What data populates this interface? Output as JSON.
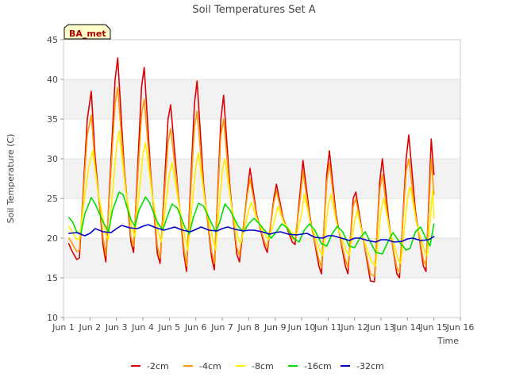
{
  "chart_data": {
    "type": "line",
    "title": "Soil Temperatures Set A",
    "xlabel": "Time",
    "ylabel": "Soil Temperature (C)",
    "annotation": "BA_met",
    "xlim": [
      1,
      16
    ],
    "ylim": [
      10,
      45
    ],
    "x_ticks": [
      1,
      2,
      3,
      4,
      5,
      6,
      7,
      8,
      9,
      10,
      11,
      12,
      13,
      14,
      15,
      16
    ],
    "x_tick_labels": [
      "Jun 1",
      "Jun 2",
      "Jun 3",
      "Jun 4",
      "Jun 5",
      "Jun 6",
      "Jun 7",
      "Jun 8",
      "Jun 9",
      "Jun 10",
      "Jun 11",
      "Jun 12",
      "Jun 13",
      "Jun 14",
      "Jun 15",
      "Jun 16"
    ],
    "y_ticks": [
      10,
      15,
      20,
      25,
      30,
      35,
      40,
      45
    ],
    "y_tick_labels": [
      "10",
      "15",
      "20",
      "25",
      "30",
      "35",
      "40",
      "45"
    ],
    "grid": true,
    "legend_position": "bottom",
    "series": [
      {
        "name": "-2cm",
        "color": "#dd0000",
        "x": [
          1.2,
          1.3,
          1.5,
          1.6,
          1.9,
          2.05,
          2.2,
          2.5,
          2.6,
          2.95,
          3.05,
          3.3,
          3.55,
          3.65,
          3.95,
          4.05,
          4.3,
          4.55,
          4.65,
          4.95,
          5.05,
          5.3,
          5.55,
          5.65,
          5.95,
          6.05,
          6.3,
          6.6,
          6.7,
          6.95,
          7.05,
          7.3,
          7.55,
          7.65,
          7.95,
          8.05,
          8.3,
          8.6,
          8.7,
          8.95,
          9.05,
          9.3,
          9.65,
          9.75,
          9.95,
          10.05,
          10.3,
          10.65,
          10.75,
          10.95,
          11.05,
          11.3,
          11.65,
          11.75,
          11.95,
          12.05,
          12.3,
          12.6,
          12.75,
          12.95,
          13.05,
          13.3,
          13.6,
          13.7,
          13.95,
          14.05,
          14.3,
          14.6,
          14.7,
          14.9,
          15.0
        ],
        "values": [
          19.3,
          18.5,
          17.3,
          17.5,
          35.0,
          38.5,
          30.0,
          19.0,
          17.0,
          40.0,
          42.7,
          28.5,
          19.5,
          18.2,
          39.0,
          41.5,
          28.0,
          18.0,
          16.8,
          35.0,
          36.8,
          27.0,
          18.0,
          15.8,
          37.0,
          39.8,
          26.5,
          17.5,
          16.0,
          35.0,
          38.0,
          26.0,
          18.0,
          17.0,
          26.0,
          28.8,
          23.0,
          19.0,
          18.2,
          25.0,
          26.8,
          22.5,
          19.5,
          19.2,
          26.0,
          29.8,
          23.0,
          16.5,
          15.5,
          28.0,
          31.0,
          23.0,
          16.5,
          15.5,
          25.0,
          25.8,
          20.5,
          14.6,
          14.5,
          27.0,
          30.0,
          22.0,
          15.5,
          15.0,
          30.0,
          33.0,
          23.5,
          16.5,
          15.8,
          32.5,
          28.0
        ]
      },
      {
        "name": "-4cm",
        "color": "#ff9900",
        "x": [
          1.2,
          1.3,
          1.5,
          1.6,
          1.9,
          2.05,
          2.2,
          2.5,
          2.6,
          2.95,
          3.05,
          3.3,
          3.55,
          3.65,
          3.95,
          4.05,
          4.3,
          4.55,
          4.65,
          4.95,
          5.05,
          5.3,
          5.55,
          5.65,
          5.95,
          6.05,
          6.3,
          6.6,
          6.7,
          6.95,
          7.05,
          7.3,
          7.55,
          7.65,
          7.95,
          8.05,
          8.3,
          8.6,
          8.7,
          8.95,
          9.05,
          9.3,
          9.65,
          9.75,
          9.95,
          10.05,
          10.3,
          10.65,
          10.75,
          10.95,
          11.05,
          11.3,
          11.65,
          11.75,
          11.95,
          12.05,
          12.3,
          12.6,
          12.75,
          12.95,
          13.05,
          13.3,
          13.6,
          13.7,
          13.95,
          14.05,
          14.3,
          14.6,
          14.7,
          14.9,
          15.0
        ],
        "values": [
          20.0,
          19.5,
          18.3,
          18.5,
          33.0,
          35.5,
          29.0,
          20.0,
          17.8,
          37.0,
          39.0,
          28.0,
          20.2,
          19.0,
          35.5,
          37.5,
          27.5,
          19.0,
          17.5,
          32.0,
          33.8,
          26.5,
          18.8,
          16.5,
          34.0,
          36.0,
          26.0,
          18.3,
          16.8,
          33.0,
          35.0,
          25.5,
          18.8,
          17.8,
          25.5,
          27.5,
          22.8,
          19.5,
          18.8,
          24.5,
          26.0,
          22.3,
          20.0,
          19.8,
          25.0,
          28.5,
          22.5,
          17.3,
          16.3,
          27.0,
          29.5,
          22.5,
          17.3,
          16.3,
          24.0,
          25.0,
          20.3,
          15.5,
          15.2,
          26.0,
          28.0,
          21.5,
          16.2,
          15.7,
          28.5,
          30.0,
          23.0,
          17.3,
          16.5,
          30.0,
          25.5
        ]
      },
      {
        "name": "-8cm",
        "color": "#ffee00",
        "x": [
          1.2,
          1.5,
          1.6,
          1.95,
          2.1,
          2.3,
          2.6,
          2.7,
          3.0,
          3.1,
          3.35,
          3.6,
          3.7,
          4.0,
          4.1,
          4.35,
          4.6,
          4.7,
          5.0,
          5.1,
          5.35,
          5.6,
          5.7,
          6.0,
          6.1,
          6.35,
          6.65,
          6.75,
          7.0,
          7.1,
          7.35,
          7.6,
          7.7,
          8.0,
          8.1,
          8.35,
          8.65,
          8.75,
          9.0,
          9.1,
          9.35,
          9.7,
          9.8,
          10.0,
          10.1,
          10.35,
          10.7,
          10.8,
          11.0,
          11.1,
          11.35,
          11.7,
          11.8,
          12.0,
          12.1,
          12.35,
          12.65,
          12.8,
          13.0,
          13.1,
          13.35,
          13.65,
          13.75,
          14.0,
          14.1,
          14.35,
          14.65,
          14.75,
          14.95,
          15.0
        ],
        "values": [
          21.5,
          19.8,
          20.0,
          29.0,
          31.0,
          26.0,
          20.5,
          19.8,
          31.5,
          33.5,
          26.0,
          21.0,
          20.2,
          30.5,
          32.0,
          25.5,
          20.5,
          19.5,
          28.0,
          29.5,
          24.5,
          20.0,
          18.5,
          29.0,
          30.8,
          24.5,
          19.8,
          18.5,
          28.5,
          30.0,
          24.0,
          20.0,
          19.3,
          23.5,
          24.5,
          22.0,
          20.3,
          19.8,
          22.5,
          24.0,
          21.8,
          20.5,
          20.3,
          23.0,
          25.5,
          21.8,
          18.3,
          17.8,
          24.0,
          25.5,
          21.5,
          18.3,
          17.8,
          22.0,
          23.5,
          19.8,
          17.0,
          16.5,
          23.5,
          25.0,
          20.8,
          17.3,
          16.8,
          25.0,
          26.5,
          21.8,
          18.3,
          17.8,
          26.0,
          22.5
        ]
      },
      {
        "name": "-16cm",
        "color": "#00dd00",
        "x": [
          1.2,
          1.35,
          1.5,
          1.65,
          1.8,
          2.05,
          2.2,
          2.5,
          2.7,
          2.85,
          3.1,
          3.25,
          3.55,
          3.7,
          3.85,
          4.1,
          4.25,
          4.55,
          4.75,
          4.9,
          5.1,
          5.3,
          5.6,
          5.75,
          5.9,
          6.1,
          6.3,
          6.6,
          6.75,
          6.9,
          7.1,
          7.3,
          7.6,
          7.8,
          8.0,
          8.2,
          8.4,
          8.65,
          8.85,
          9.05,
          9.25,
          9.45,
          9.7,
          9.9,
          10.1,
          10.3,
          10.5,
          10.75,
          10.95,
          11.15,
          11.35,
          11.55,
          11.8,
          12.0,
          12.2,
          12.4,
          12.6,
          12.8,
          13.05,
          13.3,
          13.45,
          13.7,
          13.95,
          14.1,
          14.3,
          14.5,
          14.65,
          14.85,
          15.0
        ],
        "values": [
          22.6,
          22.0,
          20.8,
          20.5,
          23.0,
          25.1,
          24.3,
          22.0,
          20.8,
          23.5,
          25.8,
          25.5,
          22.3,
          21.5,
          23.5,
          25.2,
          24.5,
          22.0,
          21.0,
          22.5,
          24.3,
          23.8,
          21.3,
          20.5,
          22.5,
          24.4,
          24.0,
          21.8,
          20.8,
          22.0,
          24.3,
          23.5,
          21.5,
          20.8,
          21.8,
          22.5,
          21.8,
          20.8,
          20.0,
          20.8,
          21.8,
          21.3,
          20.0,
          19.5,
          21.0,
          21.8,
          21.0,
          19.3,
          19.0,
          20.5,
          21.5,
          20.8,
          19.0,
          18.8,
          20.0,
          20.8,
          19.5,
          18.2,
          18.0,
          19.8,
          20.7,
          19.5,
          18.5,
          18.7,
          20.8,
          21.4,
          20.3,
          19.0,
          21.8
        ]
      },
      {
        "name": "-32cm",
        "color": "#0000cc",
        "x": [
          1.2,
          1.5,
          1.8,
          2.0,
          2.2,
          2.5,
          2.8,
          3.0,
          3.2,
          3.5,
          3.8,
          4.0,
          4.2,
          4.5,
          4.8,
          5.0,
          5.2,
          5.5,
          5.8,
          6.0,
          6.2,
          6.5,
          6.8,
          7.0,
          7.2,
          7.5,
          7.8,
          8.0,
          8.2,
          8.5,
          8.8,
          9.0,
          9.2,
          9.5,
          9.8,
          10.0,
          10.2,
          10.5,
          10.8,
          11.0,
          11.2,
          11.5,
          11.8,
          12.0,
          12.2,
          12.5,
          12.8,
          13.0,
          13.2,
          13.5,
          13.8,
          14.0,
          14.2,
          14.5,
          14.8,
          15.0
        ],
        "values": [
          20.6,
          20.7,
          20.3,
          20.6,
          21.2,
          20.8,
          20.7,
          21.2,
          21.6,
          21.3,
          21.2,
          21.5,
          21.7,
          21.3,
          21.0,
          21.2,
          21.4,
          21.0,
          20.8,
          21.1,
          21.4,
          21.0,
          20.9,
          21.2,
          21.4,
          21.1,
          20.9,
          21.0,
          21.0,
          20.8,
          20.5,
          20.7,
          20.8,
          20.5,
          20.4,
          20.5,
          20.6,
          20.1,
          20.0,
          20.3,
          20.3,
          20.0,
          19.7,
          20.0,
          20.0,
          19.7,
          19.5,
          19.8,
          19.8,
          19.5,
          19.6,
          19.9,
          20.0,
          19.7,
          19.8,
          20.2
        ]
      }
    ]
  }
}
